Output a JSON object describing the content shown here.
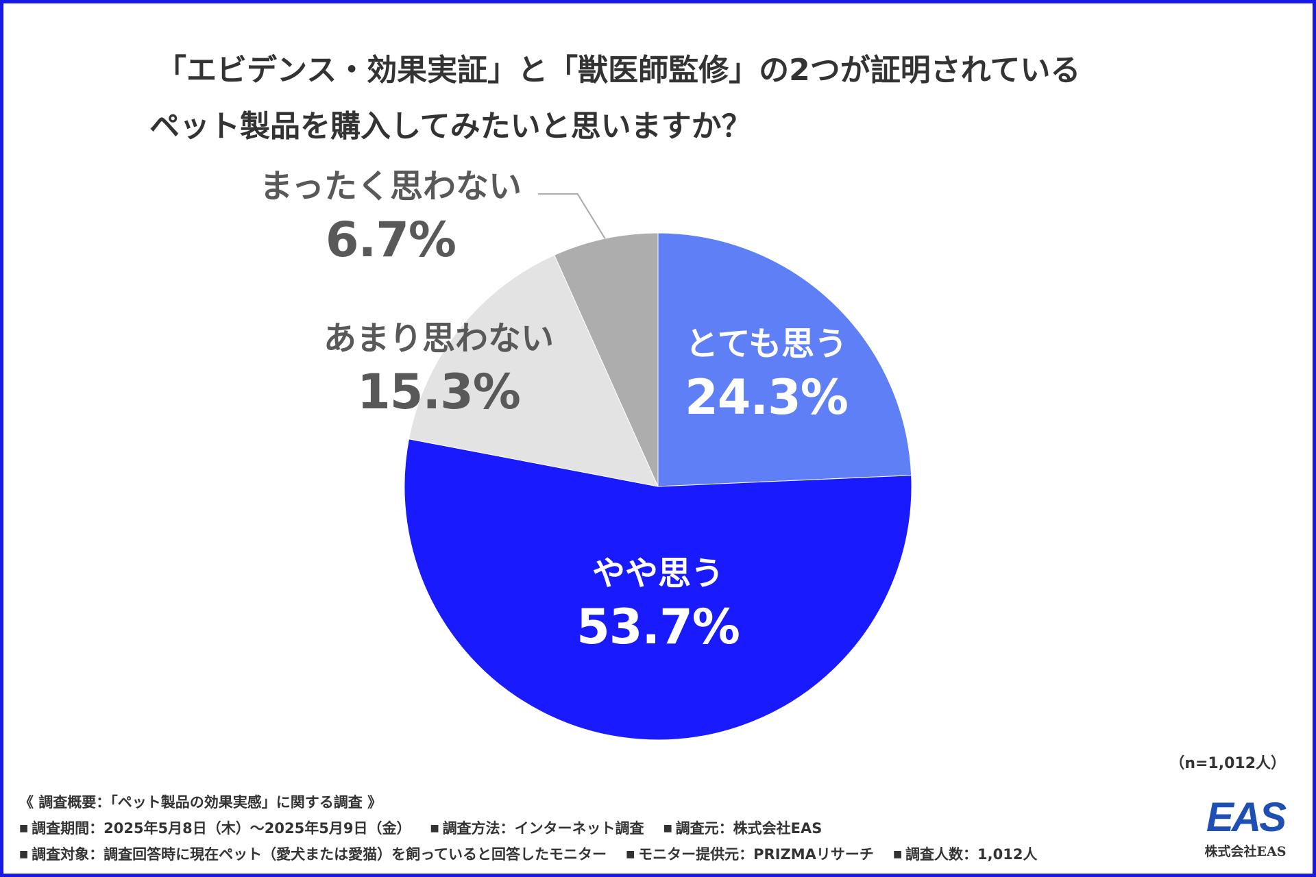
{
  "title": {
    "line1": "「エビデンス・効果実証」と「獣医師監修」の2つが証明されている",
    "line2": "ペット製品を購入してみたいと思いますか？"
  },
  "chart_data": {
    "type": "pie",
    "slices": [
      {
        "label": "とても思う",
        "value": 24.3,
        "display": "24.3%",
        "color": "#5f7ff7",
        "text_color": "#ffffff"
      },
      {
        "label": "やや思う",
        "value": 53.7,
        "display": "53.7%",
        "color": "#1a1aff",
        "text_color": "#ffffff"
      },
      {
        "label": "あまり思わない",
        "value": 15.3,
        "display": "15.3%",
        "color": "#e3e3e3",
        "text_color": "#595959"
      },
      {
        "label": "まったく思わない",
        "value": 6.7,
        "display": "6.7%",
        "color": "#adadad",
        "text_color": "#595959"
      }
    ],
    "start": "12 o'clock",
    "direction": "clockwise",
    "leader_line_color": "#aaaaaa"
  },
  "sample_note": "（n=1,012人）",
  "footer": {
    "heading": "《 調査概要：「ペット製品の効果実感」に関する調査 》",
    "row1": [
      "調査期間：2025年5月8日（木）〜2025年5月9日（金）",
      "調査方法：インターネット調査",
      "調査元：株式会社EAS"
    ],
    "row2": [
      "調査対象：調査回答時に現在ペット（愛犬または愛猫）を飼っていると回答したモニター",
      "モニター提供元：PRIZMAリサーチ",
      "調査人数：1,012人"
    ]
  },
  "logo": {
    "mark": "EAS",
    "company": "株式会社EAS",
    "color": "#1e50b4"
  },
  "frame_color": "#1a1ae6"
}
